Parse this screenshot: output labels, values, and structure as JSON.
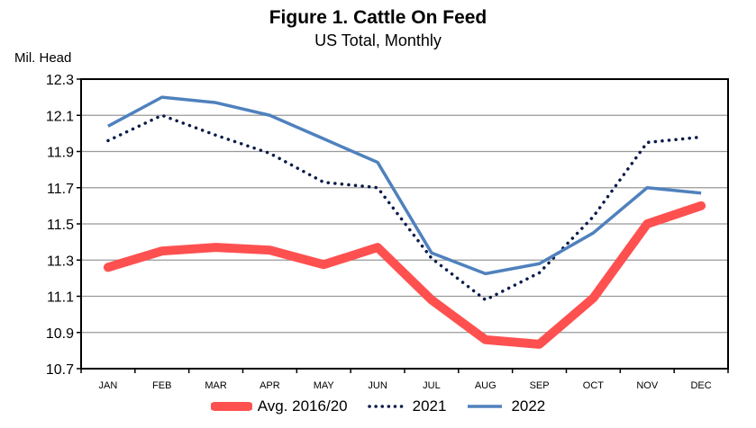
{
  "chart_data": {
    "type": "line",
    "title": "Figure 1.  Cattle On Feed",
    "subtitle": "US Total, Monthly",
    "ylabel": "Mil. Head",
    "xlabel": "",
    "categories": [
      "JAN",
      "FEB",
      "MAR",
      "APR",
      "MAY",
      "JUN",
      "JUL",
      "AUG",
      "SEP",
      "OCT",
      "NOV",
      "DEC"
    ],
    "ylim": [
      10.7,
      12.3
    ],
    "yticks": [
      "10.7",
      "10.9",
      "11.1",
      "11.3",
      "11.5",
      "11.7",
      "11.9",
      "12.1",
      "12.3"
    ],
    "grid": true,
    "legend": "bottom",
    "series": [
      {
        "name": "Avg. 2016/20",
        "color": "#FF5050",
        "style": "thick-solid",
        "values": [
          11.26,
          11.35,
          11.37,
          11.355,
          11.275,
          11.37,
          11.08,
          10.86,
          10.835,
          11.09,
          11.5,
          11.6
        ]
      },
      {
        "name": "2021",
        "color": "#0A1A4A",
        "style": "dotted",
        "values": [
          11.96,
          12.1,
          11.99,
          11.89,
          11.73,
          11.7,
          11.31,
          11.08,
          11.23,
          11.54,
          11.95,
          11.98
        ]
      },
      {
        "name": "2022",
        "color": "#4F81BD",
        "style": "solid",
        "values": [
          12.04,
          12.2,
          12.17,
          12.1,
          11.97,
          11.84,
          11.34,
          11.225,
          11.28,
          11.45,
          11.7,
          11.67
        ]
      }
    ]
  }
}
